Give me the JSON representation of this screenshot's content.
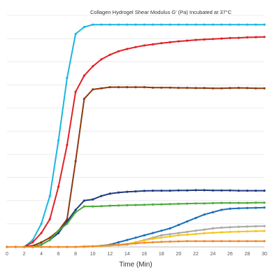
{
  "chart_data": {
    "type": "line",
    "title": "Collagen Hydrogel Shear Modulus G' (Pa) Incubated at 37°C",
    "xlabel": "Time (Min)",
    "ylabel": "",
    "xlim": [
      0,
      30
    ],
    "ylim": [
      0,
      100
    ],
    "x_ticks": [
      0,
      2,
      4,
      6,
      8,
      10,
      12,
      14,
      16,
      18,
      20,
      22,
      24,
      26,
      28,
      30
    ],
    "y_tick_labels_shown": false,
    "grid": "horizontal",
    "legend": "none",
    "x": [
      0,
      1,
      2,
      3,
      4,
      5,
      6,
      7,
      8,
      9,
      10,
      11,
      12,
      13,
      14,
      15,
      16,
      17,
      18,
      19,
      20,
      21,
      22,
      23,
      24,
      25,
      26,
      27,
      28,
      29,
      30
    ],
    "series": [
      {
        "color": "#1ab6e0",
        "values": [
          0,
          0,
          0,
          3,
          10,
          22,
          46,
          73,
          92,
          95,
          96,
          96,
          96,
          96,
          96,
          96,
          96,
          96,
          96,
          96,
          96,
          96,
          96,
          96,
          96,
          96,
          96,
          96,
          96,
          96,
          96
        ]
      },
      {
        "color": "#e02127",
        "values": [
          0,
          0,
          0,
          2,
          6,
          12,
          26,
          44,
          67,
          74,
          78,
          81,
          83,
          84.5,
          85.5,
          86.3,
          87,
          87.5,
          88,
          88.4,
          88.8,
          89.1,
          89.4,
          89.6,
          89.8,
          90,
          90.2,
          90.3,
          90.5,
          90.6,
          90.7
        ]
      },
      {
        "color": "#8b3a10",
        "values": [
          0,
          0,
          0,
          0.5,
          2,
          4,
          7,
          12,
          37,
          64,
          68,
          68.5,
          69,
          69,
          69,
          69,
          69,
          68.8,
          68.8,
          68.8,
          68.7,
          68.7,
          68.6,
          68.6,
          68.5,
          68.5,
          68.6,
          68.7,
          68.6,
          68.5,
          68.5
        ]
      },
      {
        "color": "#1f3b80",
        "values": [
          0,
          0,
          0,
          0,
          1,
          3,
          6,
          11,
          16,
          20,
          20.5,
          22,
          23,
          23.5,
          23.8,
          24,
          24.2,
          24.3,
          24.3,
          24.3,
          24.4,
          24.4,
          24.5,
          24.5,
          24.4,
          24.4,
          24.4,
          24.3,
          24.3,
          24.3,
          24.3
        ]
      },
      {
        "color": "#4aaa3a",
        "values": [
          0,
          0,
          0,
          0,
          1,
          3,
          7,
          10,
          15,
          17.5,
          17.5,
          17.6,
          17.8,
          17.9,
          18,
          18.1,
          18.2,
          18.3,
          18.4,
          18.5,
          18.6,
          18.7,
          18.8,
          18.8,
          18.9,
          19,
          19,
          19,
          19,
          19.1,
          19.1
        ]
      },
      {
        "color": "#1b6fb8",
        "values": [
          0,
          0,
          0,
          0,
          0,
          0,
          0,
          0,
          0,
          0,
          0.2,
          0.5,
          1,
          2,
          3,
          4,
          5,
          6,
          7,
          8,
          9.5,
          11,
          12.5,
          14,
          15,
          16,
          16.5,
          16.7,
          16.8,
          16.9,
          17
        ]
      },
      {
        "color": "#a8a8a8",
        "values": [
          0,
          0,
          0,
          0,
          0,
          0,
          0,
          0,
          0,
          0,
          0.2,
          0.4,
          0.6,
          0.8,
          1,
          2,
          3,
          4,
          5,
          5.5,
          6,
          6.5,
          7,
          7.5,
          8,
          8.3,
          8.5,
          8.7,
          8.8,
          8.9,
          9
        ]
      },
      {
        "color": "#f5c518",
        "values": [
          0,
          0,
          0,
          0,
          0,
          0,
          0,
          0,
          0,
          0,
          0.2,
          0.4,
          0.6,
          0.9,
          1.3,
          2,
          2.8,
          3.5,
          4,
          4.5,
          5,
          5.3,
          5.6,
          5.9,
          6.1,
          6.3,
          6.5,
          6.6,
          6.7,
          6.8,
          6.9
        ]
      },
      {
        "color": "#ef8a2a",
        "values": [
          0,
          0,
          0,
          0,
          0,
          0,
          0,
          0,
          0,
          0.2,
          0.3,
          0.5,
          0.8,
          1,
          1.2,
          1.5,
          1.8,
          2,
          2.2,
          2.3,
          2.4,
          2.5,
          2.5,
          2.5,
          2.5,
          2.5,
          2.5,
          2.5,
          2.5,
          2.5,
          2.5
        ]
      }
    ]
  }
}
